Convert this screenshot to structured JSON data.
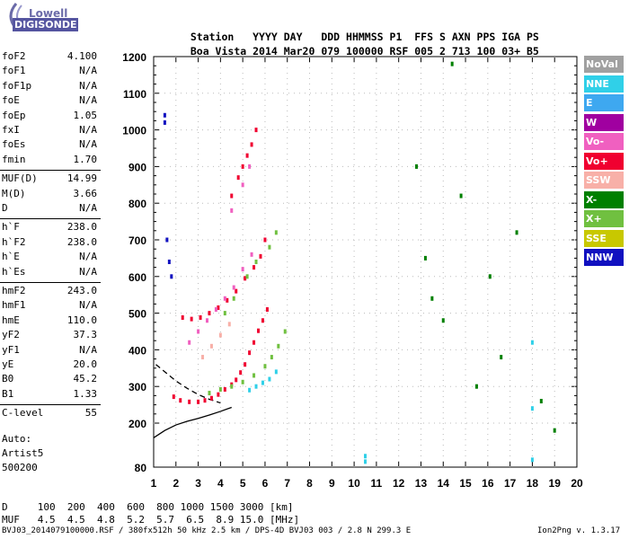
{
  "logo": {
    "line1": "Lowell",
    "line2": "DIGISONDE"
  },
  "header": {
    "labels": [
      "Station",
      "YYYY",
      "DAY",
      "DDD",
      "HHMMSS",
      "P1",
      "FFS",
      "S",
      "AXN",
      "PPS",
      "IGA",
      "PS"
    ],
    "values": [
      "Boa Vista",
      "2014",
      "Mar20",
      "079",
      "100000",
      "RSF",
      "005",
      "2",
      "713",
      "100",
      "03+",
      "B5"
    ]
  },
  "params": [
    {
      "name": "foF2",
      "value": "4.100"
    },
    {
      "name": "foF1",
      "value": "N/A"
    },
    {
      "name": "foF1p",
      "value": "N/A"
    },
    {
      "name": "foE",
      "value": "N/A"
    },
    {
      "name": "foEp",
      "value": "1.05"
    },
    {
      "name": "fxI",
      "value": "N/A"
    },
    {
      "name": "foEs",
      "value": "N/A"
    },
    {
      "name": "fmin",
      "value": "1.70"
    },
    {
      "name": "MUF(D)",
      "value": "14.99"
    },
    {
      "name": "M(D)",
      "value": "3.66"
    },
    {
      "name": "D",
      "value": "N/A"
    },
    {
      "name": "h`F",
      "value": "238.0"
    },
    {
      "name": "h`F2",
      "value": "238.0"
    },
    {
      "name": "h`E",
      "value": "N/A"
    },
    {
      "name": "h`Es",
      "value": "N/A"
    },
    {
      "name": "hmF2",
      "value": "243.0"
    },
    {
      "name": "hmF1",
      "value": "N/A"
    },
    {
      "name": "hmE",
      "value": "110.0"
    },
    {
      "name": "yF2",
      "value": "37.3"
    },
    {
      "name": "yF1",
      "value": "N/A"
    },
    {
      "name": "yE",
      "value": "20.0"
    },
    {
      "name": "B0",
      "value": "45.2"
    },
    {
      "name": "B1",
      "value": "1.33"
    },
    {
      "name": "C-level",
      "value": "55"
    }
  ],
  "auto": {
    "label": "Auto:",
    "artist": "Artist5",
    "code": "500200"
  },
  "legend": [
    {
      "label": "NoVal",
      "color": "#a0a0a0"
    },
    {
      "label": "NNE",
      "color": "#30d0e8"
    },
    {
      "label": "E",
      "color": "#3ea8f0"
    },
    {
      "label": "W",
      "color": "#a000a0"
    },
    {
      "label": "Vo-",
      "color": "#f060c0"
    },
    {
      "label": "Vo+",
      "color": "#f00030"
    },
    {
      "label": "SSW",
      "color": "#f8b0a8"
    },
    {
      "label": "X-",
      "color": "#008000"
    },
    {
      "label": "X+",
      "color": "#70c040"
    },
    {
      "label": "SSE",
      "color": "#c8c800"
    },
    {
      "label": "NNW",
      "color": "#1010c0"
    }
  ],
  "footer": {
    "d_row": "D     100  200  400  600  800 1000 1500 3000 [km]",
    "muf_row": "MUF   4.5  4.5  4.8  5.2  5.7  6.5  8.9 15.0 [MHz]",
    "file_info": "BVJ03_2014079100000.RSF / 380fx512h 50 kHz 2.5 km / DPS-4D BVJ03 003 / 2.8 N 299.3 E",
    "version": "Ion2Png v. 1.3.17"
  },
  "chart_data": {
    "type": "scatter",
    "title": "",
    "xlabel": "",
    "ylabel": "",
    "xlim": [
      1,
      20
    ],
    "ylim": [
      80,
      1200
    ],
    "x_ticks": [
      1,
      2,
      3,
      4,
      5,
      6,
      7,
      8,
      9,
      10,
      11,
      12,
      13,
      14,
      15,
      16,
      17,
      18,
      19,
      20
    ],
    "y_ticks": [
      80,
      200,
      300,
      400,
      500,
      600,
      700,
      800,
      900,
      1000,
      1100,
      1200
    ],
    "grid": true,
    "series": [
      {
        "name": "Vo+",
        "color": "#f00030",
        "x": [
          1.9,
          2.2,
          2.6,
          3.0,
          3.3,
          3.6,
          3.9,
          4.2,
          4.5,
          4.7,
          4.9,
          5.1,
          5.3,
          5.5,
          5.7,
          5.9,
          6.1,
          2.3,
          2.7,
          3.1,
          3.5,
          3.9,
          4.3,
          4.7,
          5.1,
          5.5,
          5.8,
          6.0,
          4.5,
          4.8,
          5.0,
          5.2,
          5.4,
          5.6
        ],
        "y": [
          272,
          262,
          258,
          258,
          262,
          268,
          278,
          292,
          305,
          318,
          338,
          360,
          392,
          420,
          452,
          480,
          510,
          488,
          484,
          488,
          500,
          515,
          535,
          560,
          595,
          625,
          655,
          700,
          820,
          870,
          900,
          930,
          960,
          1000
        ]
      },
      {
        "name": "X+",
        "color": "#70c040",
        "x": [
          3.5,
          4.0,
          4.5,
          5.0,
          5.5,
          6.0,
          6.3,
          6.6,
          6.9,
          4.2,
          4.6,
          5.2,
          5.6,
          6.2,
          6.5
        ],
        "y": [
          282,
          292,
          300,
          312,
          330,
          355,
          380,
          410,
          450,
          500,
          540,
          600,
          640,
          680,
          720
        ]
      },
      {
        "name": "Vo-",
        "color": "#f060c0",
        "x": [
          2.6,
          3.0,
          3.4,
          3.8,
          4.2,
          4.6,
          5.0,
          5.4,
          4.5,
          5.0,
          5.3
        ],
        "y": [
          420,
          450,
          480,
          510,
          540,
          570,
          620,
          660,
          780,
          850,
          900
        ]
      },
      {
        "name": "NNE",
        "color": "#30d0e8",
        "x": [
          5.3,
          5.6,
          5.9,
          6.2,
          6.5,
          10.5,
          10.5,
          18.0,
          18.0,
          18.0
        ],
        "y": [
          290,
          300,
          310,
          320,
          340,
          95,
          110,
          100,
          240,
          420
        ]
      },
      {
        "name": "NNW",
        "color": "#1010c0",
        "x": [
          1.5,
          1.5,
          1.6,
          1.7,
          1.8
        ],
        "y": [
          1040,
          1020,
          700,
          640,
          600
        ]
      },
      {
        "name": "X-",
        "color": "#008000",
        "x": [
          12.8,
          13.2,
          13.5,
          14.0,
          14.4,
          14.8,
          15.5,
          16.1,
          16.6,
          17.3,
          18.4,
          19.0
        ],
        "y": [
          900,
          650,
          540,
          480,
          1180,
          820,
          300,
          600,
          380,
          720,
          260,
          180
        ]
      },
      {
        "name": "SSW",
        "color": "#f8b0a8",
        "x": [
          3.2,
          3.6,
          4.0,
          4.4
        ],
        "y": [
          380,
          410,
          440,
          470
        ]
      }
    ],
    "traces": [
      {
        "name": "",
        "color": "#000000",
        "style": "solid",
        "x": [
          1.0,
          1.5,
          2.0,
          2.5,
          3.0,
          3.5,
          4.0,
          4.5
        ],
        "y": [
          160,
          180,
          195,
          205,
          213,
          222,
          232,
          243
        ]
      },
      {
        "name": "",
        "color": "#000000",
        "style": "dashed",
        "x": [
          1.1,
          1.5,
          2.0,
          2.5,
          3.0,
          3.5,
          4.0
        ],
        "y": [
          360,
          340,
          315,
          295,
          278,
          265,
          255
        ]
      }
    ]
  }
}
